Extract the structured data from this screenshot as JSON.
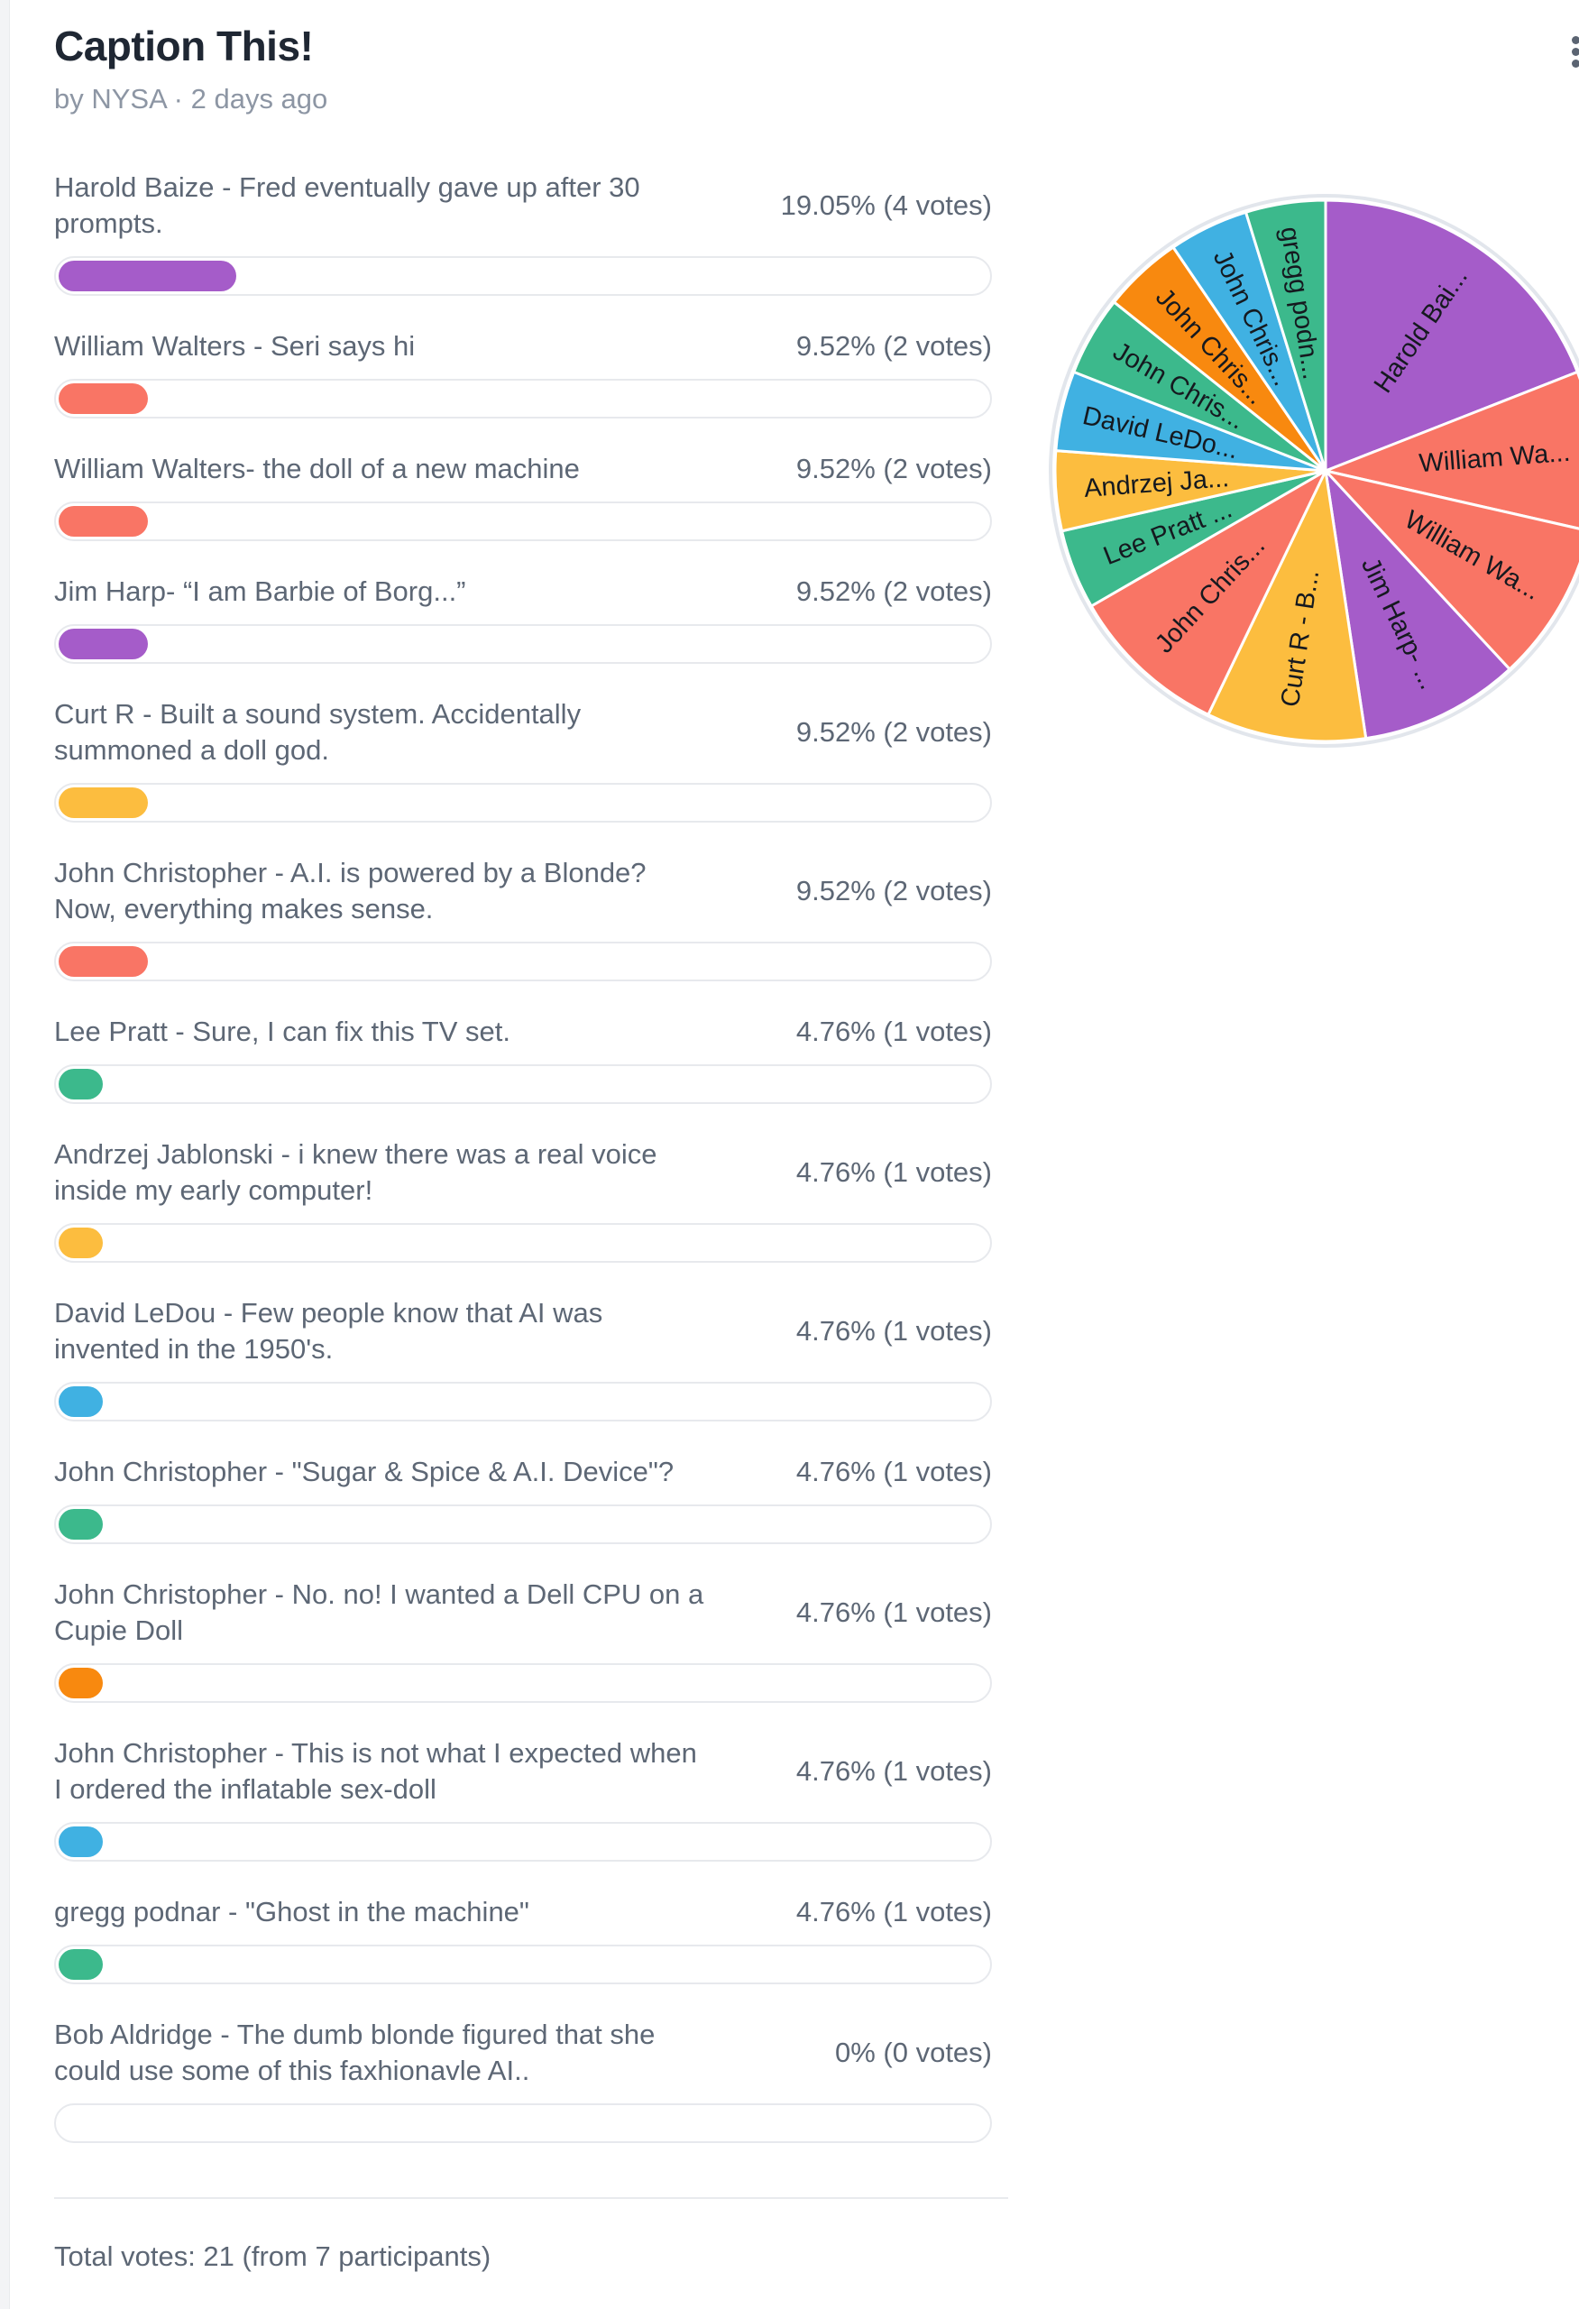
{
  "header": {
    "title": "Caption This!",
    "byline": "by NYSA · 2 days ago",
    "menu_icon": "kebab-menu"
  },
  "poll": {
    "options": [
      {
        "label": "Harold Baize - Fred eventually gave up after 30 prompts.",
        "value_label": "19.05% (4 votes)",
        "percent": 19.05,
        "votes": 4,
        "color": "#a55cc9"
      },
      {
        "label": "William Walters - Seri says hi",
        "value_label": "9.52% (2 votes)",
        "percent": 9.52,
        "votes": 2,
        "color": "#f97565"
      },
      {
        "label": "William Walters- the doll of a new machine",
        "value_label": "9.52% (2 votes)",
        "percent": 9.52,
        "votes": 2,
        "color": "#f97565"
      },
      {
        "label": "Jim Harp- “I am Barbie of Borg...”",
        "value_label": "9.52% (2 votes)",
        "percent": 9.52,
        "votes": 2,
        "color": "#a55cc9"
      },
      {
        "label": "Curt R - Built a sound system. Accidentally summoned a doll god.",
        "value_label": "9.52% (2 votes)",
        "percent": 9.52,
        "votes": 2,
        "color": "#fcbd3f"
      },
      {
        "label": "John Christopher - A.I. is powered by a Blonde? Now, everything makes sense.",
        "value_label": "9.52% (2 votes)",
        "percent": 9.52,
        "votes": 2,
        "color": "#f97565"
      },
      {
        "label": "Lee Pratt - Sure, I can fix this TV set.",
        "value_label": "4.76% (1 votes)",
        "percent": 4.76,
        "votes": 1,
        "color": "#3cb98c"
      },
      {
        "label": "Andrzej Jablonski - i knew there was a real voice inside my early computer!",
        "value_label": "4.76% (1 votes)",
        "percent": 4.76,
        "votes": 1,
        "color": "#fcbd3f"
      },
      {
        "label": "David LeDou - Few people know that AI was invented in the 1950's.",
        "value_label": "4.76% (1 votes)",
        "percent": 4.76,
        "votes": 1,
        "color": "#40b1e2"
      },
      {
        "label": "John Christopher - \"Sugar & Spice & A.I. Device\"?",
        "value_label": "4.76% (1 votes)",
        "percent": 4.76,
        "votes": 1,
        "color": "#3cb98c"
      },
      {
        "label": "John Christopher - No. no! I wanted a Dell CPU on a Cupie Doll",
        "value_label": "4.76% (1 votes)",
        "percent": 4.76,
        "votes": 1,
        "color": "#f8890f"
      },
      {
        "label": "John Christopher - This is not what I expected when I ordered the inflatable sex-doll",
        "value_label": "4.76% (1 votes)",
        "percent": 4.76,
        "votes": 1,
        "color": "#40b1e2"
      },
      {
        "label": "gregg podnar - \"Ghost in the machine\"",
        "value_label": "4.76% (1 votes)",
        "percent": 4.76,
        "votes": 1,
        "color": "#3cb98c"
      },
      {
        "label": "Bob Aldridge - The dumb blonde figured that she could use some of this faxhionavle AI..",
        "value_label": "0% (0 votes)",
        "percent": 0,
        "votes": 0,
        "color": null
      }
    ],
    "total_label": "Total votes: 21 (from 7 participants)"
  },
  "chart_data": {
    "type": "pie",
    "total_votes": 21,
    "start": "top",
    "direction": "clockwise",
    "labels_on_slices": true,
    "slices": [
      {
        "label": "Harold Bai...",
        "full_label": "Harold Baize - Fred eventually gave up after 30 prompts.",
        "votes": 4,
        "percent": 19.05,
        "color": "#a55cc9"
      },
      {
        "label": "William Wa...",
        "full_label": "William Walters - Seri says hi",
        "votes": 2,
        "percent": 9.52,
        "color": "#f97565"
      },
      {
        "label": "William Wa...",
        "full_label": "William Walters- the doll of a new machine",
        "votes": 2,
        "percent": 9.52,
        "color": "#f97565"
      },
      {
        "label": "Jim Harp- ...",
        "full_label": "Jim Harp- “I am Barbie of Borg...”",
        "votes": 2,
        "percent": 9.52,
        "color": "#a55cc9"
      },
      {
        "label": "Curt R - B...",
        "full_label": "Curt R - Built a sound system. Accidentally summoned a doll god.",
        "votes": 2,
        "percent": 9.52,
        "color": "#fcbd3f"
      },
      {
        "label": "John Chris...",
        "full_label": "John Christopher - A.I. is powered by a Blonde? Now, everything makes sense.",
        "votes": 2,
        "percent": 9.52,
        "color": "#f97565"
      },
      {
        "label": "Lee Pratt ...",
        "full_label": "Lee Pratt - Sure, I can fix this TV set.",
        "votes": 1,
        "percent": 4.76,
        "color": "#3cb98c"
      },
      {
        "label": "Andrzej Ja...",
        "full_label": "Andrzej Jablonski - i knew there was a real voice inside my early computer!",
        "votes": 1,
        "percent": 4.76,
        "color": "#fcbd3f"
      },
      {
        "label": "David LeDo...",
        "full_label": "David LeDou - Few people know that AI was invented in the 1950's.",
        "votes": 1,
        "percent": 4.76,
        "color": "#40b1e2"
      },
      {
        "label": "John Chris...",
        "full_label": "John Christopher - \"Sugar & Spice & A.I. Device\"?",
        "votes": 1,
        "percent": 4.76,
        "color": "#3cb98c"
      },
      {
        "label": "John Chris...",
        "full_label": "John Christopher - No. no! I wanted a Dell CPU on a Cupie Doll",
        "votes": 1,
        "percent": 4.76,
        "color": "#f8890f"
      },
      {
        "label": "John Chris...",
        "full_label": "John Christopher - This is not what I expected when I ordered the inflatable sex-doll",
        "votes": 1,
        "percent": 4.76,
        "color": "#40b1e2"
      },
      {
        "label": "gregg podn...",
        "full_label": "gregg podnar - \"Ghost in the machine\"",
        "votes": 1,
        "percent": 4.76,
        "color": "#3cb98c"
      }
    ]
  },
  "style": {
    "track_border": "#e7e9ed",
    "text_gray": "#5d6775",
    "ring_color": "#e2e6ec"
  }
}
